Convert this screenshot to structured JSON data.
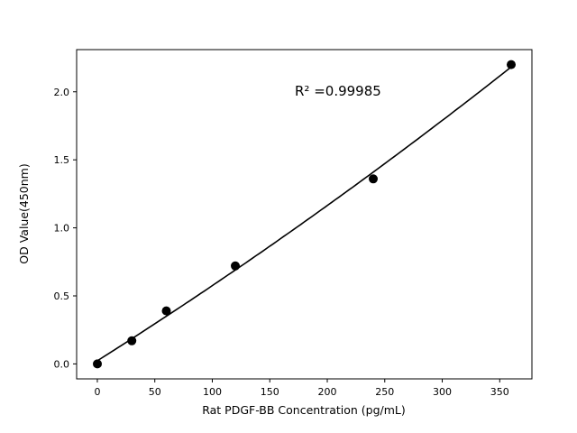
{
  "chart_data": {
    "type": "scatter",
    "title": "",
    "xlabel": "Rat PDGF-BB Concentration (pg/mL)",
    "ylabel": "OD Value(450nm)",
    "annotation": "R² =0.99985",
    "x": [
      0,
      30,
      60,
      120,
      240,
      360
    ],
    "y": [
      0.0,
      0.17,
      0.39,
      0.72,
      1.36,
      2.2
    ],
    "fit": "quadratic least-squares curve through the points",
    "xticks": [
      0,
      50,
      100,
      150,
      200,
      250,
      300,
      350
    ],
    "yticks": [
      0.0,
      0.5,
      1.0,
      1.5,
      2.0
    ],
    "xlim": [
      -18,
      378
    ],
    "ylim": [
      -0.11,
      2.31
    ],
    "grid": false,
    "legend": "none",
    "marker_color": "#000000",
    "line_color": "#000000",
    "background_color": "#ffffff"
  }
}
